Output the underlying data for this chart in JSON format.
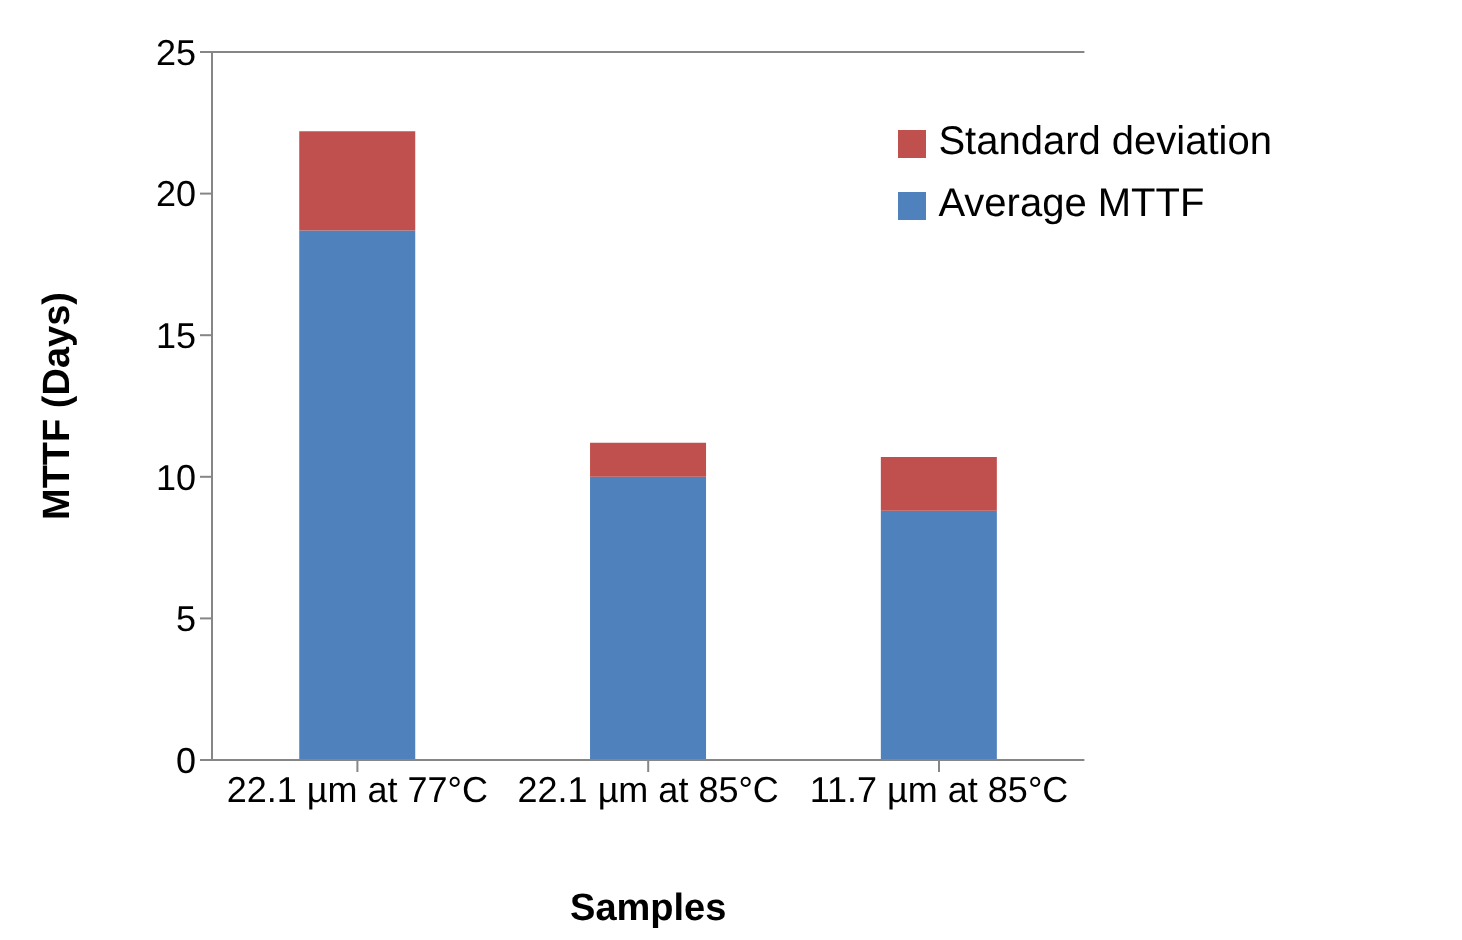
{
  "chart_data": {
    "type": "bar",
    "xlabel": "Samples",
    "ylabel": "MTTF (Days)",
    "categories": [
      "22.1 µm at 77°C",
      "22.1 µm at 85°C",
      "11.7 µm at 85°C"
    ],
    "stacked": true,
    "series": [
      {
        "name": "Average MTTF",
        "color": "#4f81bd",
        "values": [
          18.7,
          10.0,
          8.8
        ]
      },
      {
        "name": "Standard deviation",
        "color": "#c0504d",
        "values": [
          3.5,
          1.2,
          1.9
        ]
      }
    ],
    "ylim": [
      0,
      25
    ],
    "yticks": [
      0,
      5,
      10,
      15,
      20,
      25
    ],
    "legend": "top right"
  }
}
